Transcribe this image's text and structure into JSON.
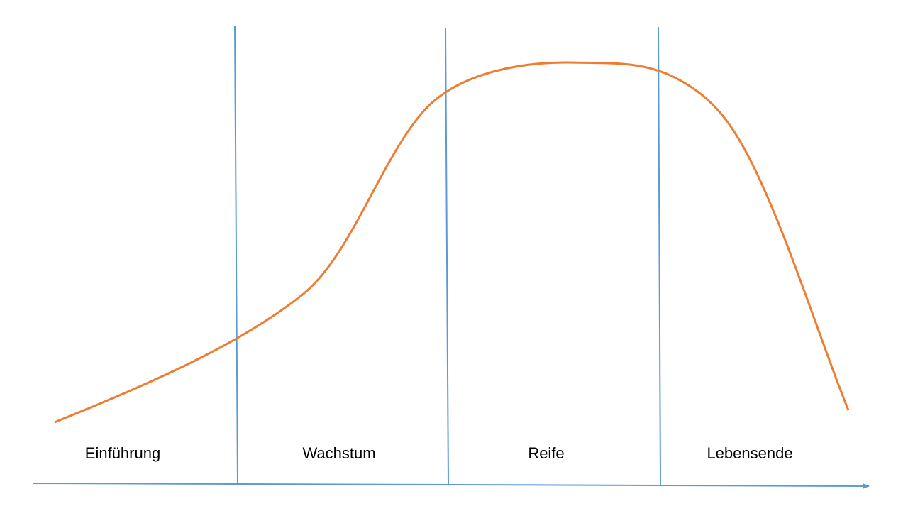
{
  "phases": [
    "Einführung",
    "Wachstum",
    "Reife",
    "Lebensende"
  ]
}
